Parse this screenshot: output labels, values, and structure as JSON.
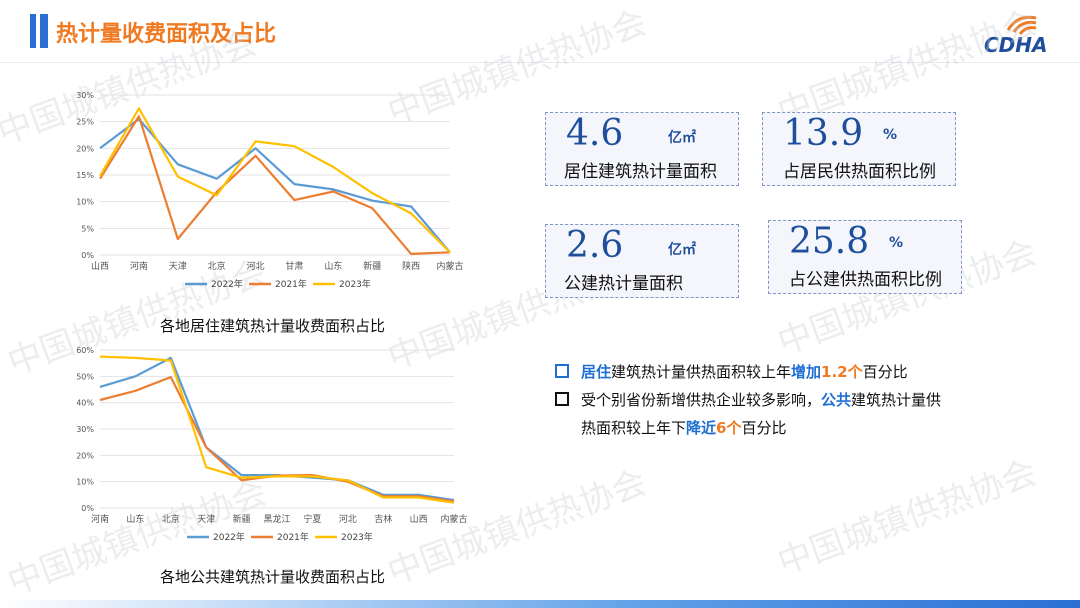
{
  "header": {
    "title": "热计量收费面积及占比",
    "logo_text": "CDHA"
  },
  "watermark_text": "中国城镇供热协会",
  "stats": [
    {
      "value": "4.6",
      "unit": "亿㎡",
      "label": "居住建筑热计量面积"
    },
    {
      "value": "13.9",
      "unit": "%",
      "label": "占居民供热面积比例"
    },
    {
      "value": "2.6",
      "unit": "亿㎡",
      "label": "公建热计量面积"
    },
    {
      "value": "25.8",
      "unit": "%",
      "label": "占公建供热面积比例"
    }
  ],
  "bullets": [
    {
      "parts": [
        {
          "text": "居住",
          "style": "blue"
        },
        {
          "text": "建筑热计量供热面积较上年",
          "style": ""
        },
        {
          "text": "增加",
          "style": "blue"
        },
        {
          "text": "1.2个",
          "style": "orange"
        },
        {
          "text": "百分比",
          "style": ""
        }
      ]
    },
    {
      "parts": [
        {
          "text": "受个别省份新增供热企业较多影响，",
          "style": ""
        },
        {
          "text": "公共",
          "style": "blue"
        },
        {
          "text": "建筑热计量供",
          "style": ""
        }
      ]
    },
    {
      "parts": [
        {
          "text": "热面积较上年下",
          "style": ""
        },
        {
          "text": "降近",
          "style": "blue"
        },
        {
          "text": "6个",
          "style": "orange"
        },
        {
          "text": "百分比",
          "style": ""
        }
      ]
    }
  ],
  "colors": {
    "s2022": "#5b9bd5",
    "s2021": "#ed7d31",
    "s2023": "#ffc000"
  },
  "chart_data": [
    {
      "type": "line",
      "title": "各地居住建筑热计量收费面积占比",
      "categories": [
        "山西",
        "河南",
        "天津",
        "北京",
        "河北",
        "甘肃",
        "山东",
        "新疆",
        "陕西",
        "内蒙古"
      ],
      "yticks": [
        "0%",
        "5%",
        "10%",
        "15%",
        "20%",
        "25%",
        "30%"
      ],
      "ylim": [
        0,
        30
      ],
      "legend_position": "bottom",
      "series": [
        {
          "name": "2022年",
          "values": [
            20,
            25.5,
            17,
            14.3,
            20,
            13.3,
            12.3,
            10.2,
            9.1,
            0.5
          ]
        },
        {
          "name": "2021年",
          "values": [
            14.3,
            26,
            3,
            11.8,
            18.6,
            10.3,
            11.9,
            8.8,
            0.2,
            0.5
          ]
        },
        {
          "name": "2023年",
          "values": [
            14.8,
            27.5,
            14.7,
            11.2,
            21.3,
            20.4,
            16.5,
            11.6,
            7.8,
            0.5
          ]
        }
      ]
    },
    {
      "type": "line",
      "title": "各地公共建筑热计量收费面积占比",
      "categories": [
        "河南",
        "山东",
        "北京",
        "天津",
        "新疆",
        "黑龙江",
        "宁夏",
        "河北",
        "吉林",
        "山西",
        "内蒙古"
      ],
      "yticks": [
        "0%",
        "10%",
        "20%",
        "30%",
        "40%",
        "50%",
        "60%"
      ],
      "ylim": [
        0,
        60
      ],
      "legend_position": "bottom",
      "series": [
        {
          "name": "2022年",
          "values": [
            46,
            50,
            57,
            23,
            12.5,
            12.5,
            11.5,
            10.5,
            5,
            5,
            3
          ]
        },
        {
          "name": "2021年",
          "values": [
            41,
            44.5,
            49.7,
            23,
            10.5,
            12.3,
            12.5,
            10,
            4.5,
            4.5,
            2.5
          ]
        },
        {
          "name": "2023年",
          "values": [
            57.5,
            57,
            56,
            15.5,
            11.5,
            12,
            12,
            10.5,
            4,
            4,
            2
          ]
        }
      ]
    }
  ]
}
